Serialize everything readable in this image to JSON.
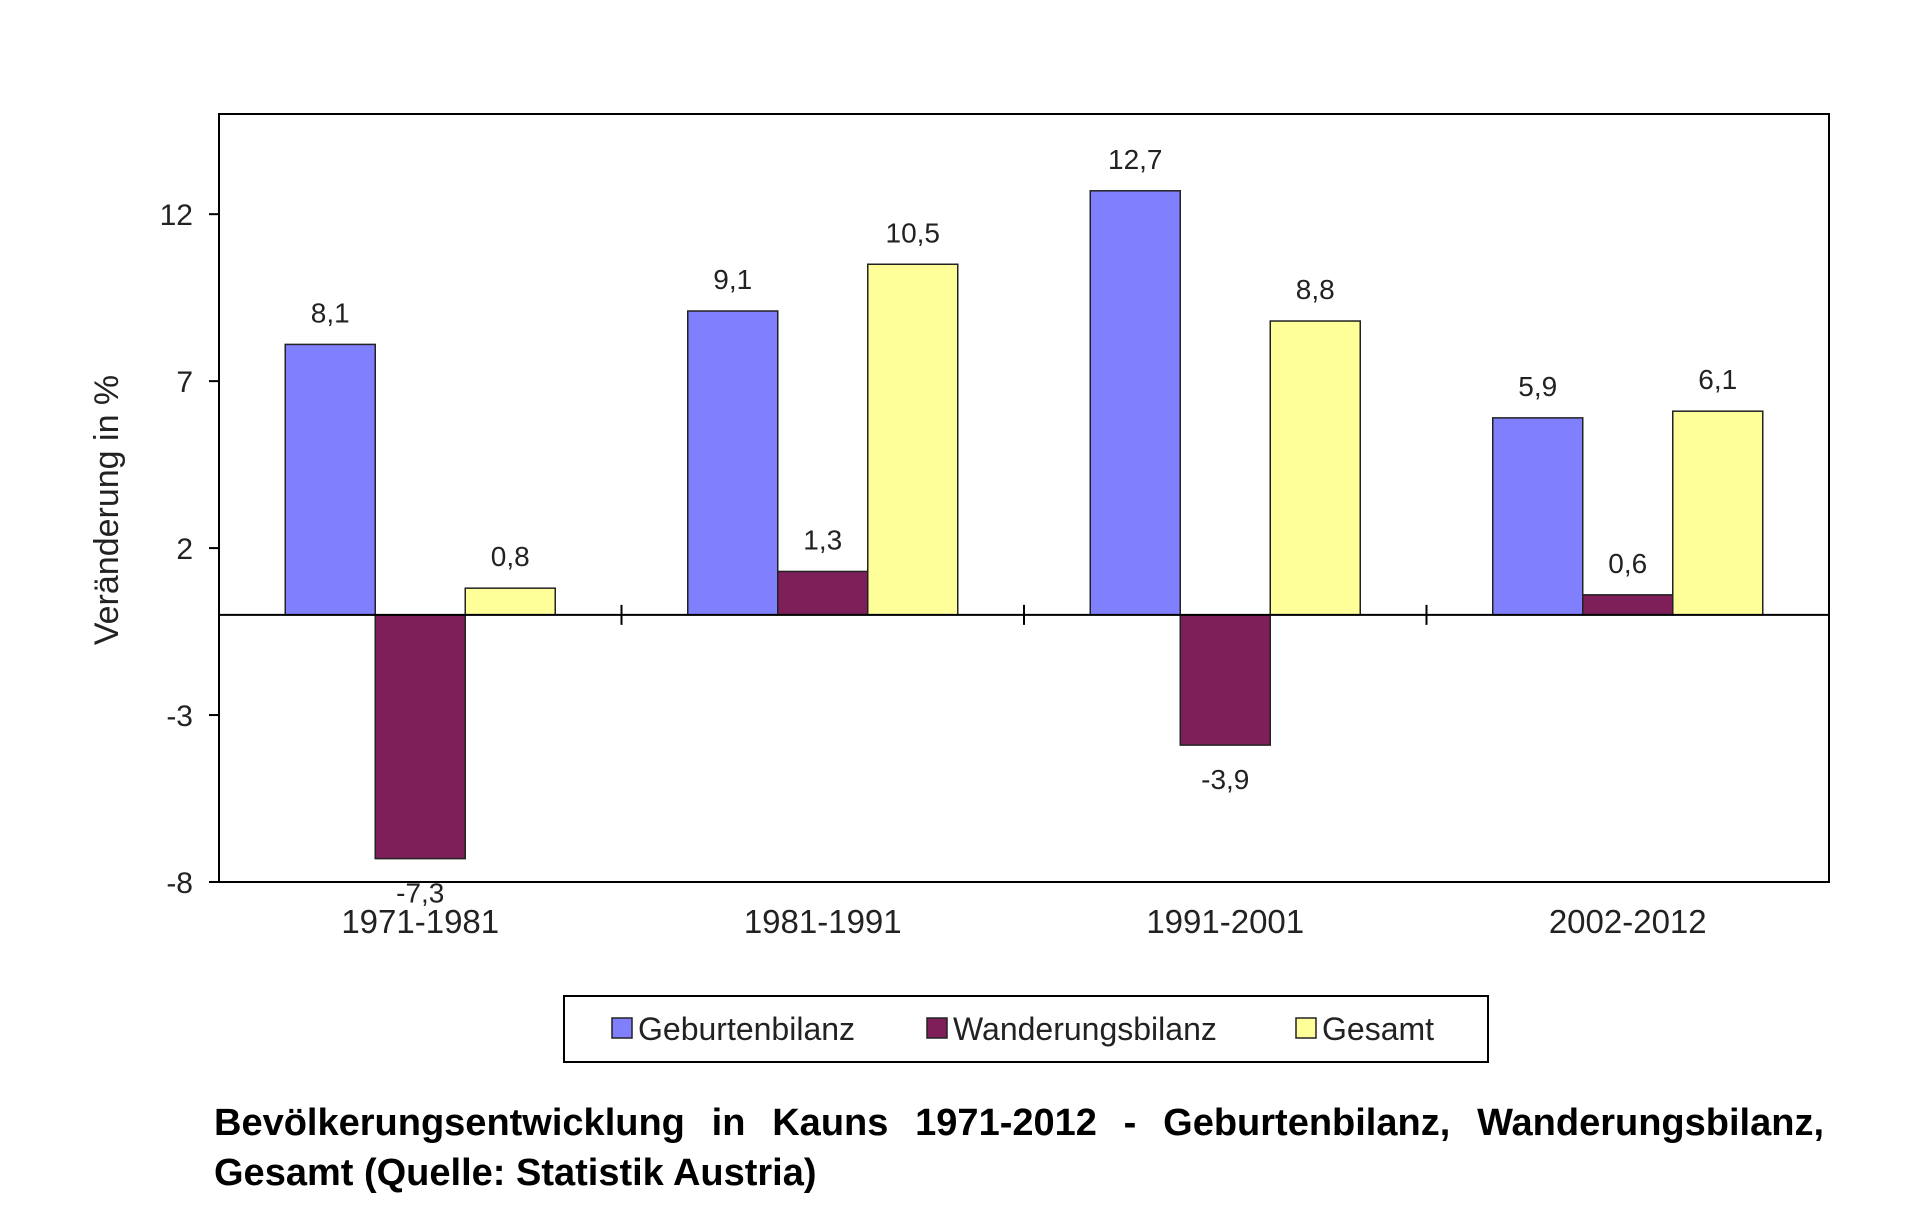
{
  "chart_data": {
    "type": "bar",
    "categories": [
      "1971-1981",
      "1981-1991",
      "1991-2001",
      "2002-2012"
    ],
    "series": [
      {
        "name": "Geburtenbilanz",
        "color": "#8080ff",
        "values": [
          8.1,
          9.1,
          12.7,
          5.9
        ],
        "labels": [
          "8,1",
          "9,1",
          "12,7",
          "5,9"
        ]
      },
      {
        "name": "Wanderungsbilanz",
        "color": "#7f1f5a",
        "values": [
          -7.3,
          1.3,
          -3.9,
          0.6
        ],
        "labels": [
          "-7,3",
          "1,3",
          "-3,9",
          "0,6"
        ]
      },
      {
        "name": "Gesamt",
        "color": "#ffff99",
        "values": [
          0.8,
          10.5,
          8.8,
          6.1
        ],
        "labels": [
          "0,8",
          "10,5",
          "8,8",
          "6,1"
        ]
      }
    ],
    "ylabel": "Veränderung in %",
    "ylim": [
      -8,
      15
    ],
    "yticks": [
      12,
      7,
      2,
      -3,
      -8
    ],
    "grid": false,
    "legend_position": "bottom"
  },
  "caption": "Bevölkerungsentwicklung in Kauns 1971-2012 - Geburtenbilanz, Wanderungsbilanz, Gesamt (Quelle: Statistik Austria)"
}
